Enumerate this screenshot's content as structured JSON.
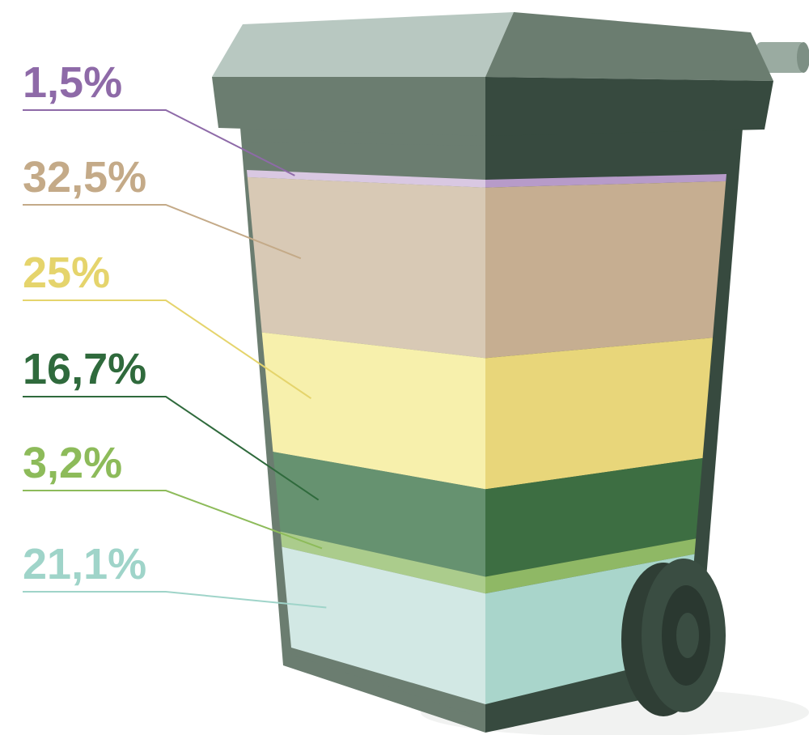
{
  "chart_data": {
    "type": "bin",
    "values": [
      1.5,
      32.5,
      25,
      16.7,
      3.2,
      21.1
    ],
    "value_labels": [
      "1,5%",
      "32,5%",
      "25%",
      "16,7%",
      "3,2%",
      "21,1%"
    ],
    "colors": [
      "#b79bc9",
      "#c6ae91",
      "#e8d67a",
      "#3d6e42",
      "#8fb865",
      "#a9d5cb"
    ],
    "light_colors": [
      "#d9c8e2",
      "#d8c9b5",
      "#f7f0ac",
      "#669270",
      "#abcc8c",
      "#d2e8e4"
    ],
    "label_colors": [
      "#8e6aa8",
      "#c4aa88",
      "#e5d46c",
      "#2f6a3c",
      "#8dbb5a",
      "#9fd4c9"
    ]
  }
}
